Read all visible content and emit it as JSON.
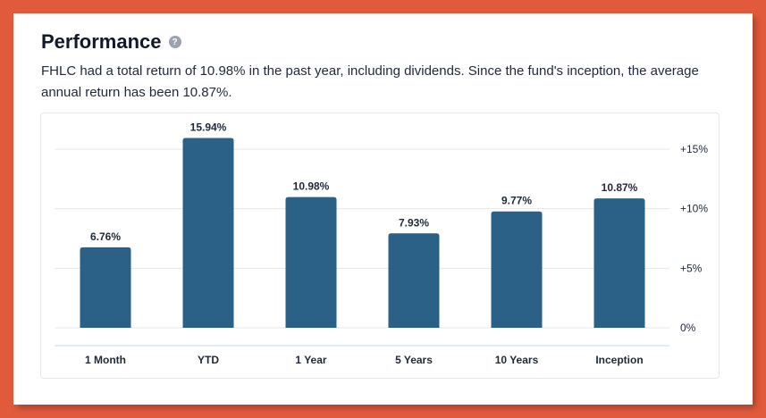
{
  "header": {
    "title": "Performance",
    "help_icon": "?"
  },
  "description": "FHLC had a total return of 10.98% in the past year, including dividends. Since the fund's inception, the average annual return has been 10.87%.",
  "colors": {
    "bar": "#2c6187",
    "background": "#e25a3c"
  },
  "chart_data": {
    "type": "bar",
    "categories": [
      "1 Month",
      "YTD",
      "1 Year",
      "5 Years",
      "10 Years",
      "Inception"
    ],
    "values": [
      6.76,
      15.94,
      10.98,
      7.93,
      9.77,
      10.87
    ],
    "value_labels": [
      "6.76%",
      "15.94%",
      "10.98%",
      "7.93%",
      "9.77%",
      "10.87%"
    ],
    "yticks": [
      0,
      5,
      10,
      15
    ],
    "ytick_labels": [
      "0%",
      "+5%",
      "+10%",
      "+15%"
    ],
    "ylim": [
      0,
      15
    ],
    "y_axis_position": "right",
    "grid": true
  }
}
